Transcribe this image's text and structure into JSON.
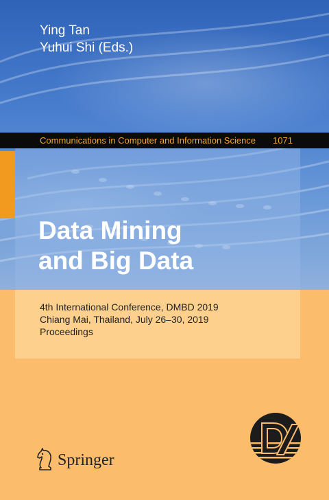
{
  "editors": [
    "Ying Tan",
    "Yuhui Shi (Eds.)"
  ],
  "series": {
    "name": "Communications in Computer and Information Science",
    "number": "1071"
  },
  "title": {
    "line1": "Data Mining",
    "line2": "and Big Data"
  },
  "subtitle": {
    "line1": "4th International Conference, DMBD 2019",
    "line2": "Chiang Mai, Thailand, July 26–30, 2019",
    "line3": "Proceedings"
  },
  "publisher": {
    "name": "Springer",
    "logo_icon": "chess-knight-icon"
  },
  "conference_logo": {
    "icon": "dmbd-logo-icon"
  },
  "colors": {
    "background": "#fbbd6c",
    "series_bar": "#0b0b0b",
    "series_text": "#f7a432",
    "accent_tab": "#f29a1f",
    "title_text": "#ffffff"
  }
}
